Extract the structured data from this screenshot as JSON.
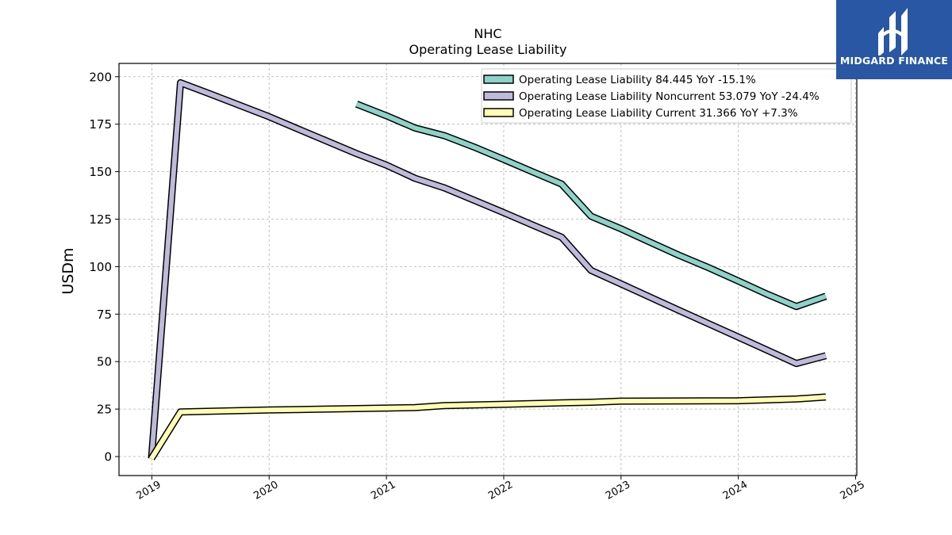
{
  "header": {
    "title_line1": "NHC",
    "title_line2": "Operating Lease Liability"
  },
  "logo": {
    "text": "MIDGARD FINANCE",
    "background": "#2957a4"
  },
  "chart_data": {
    "type": "line",
    "title": "NHC\nOperating Lease Liability",
    "ylabel": "USDm",
    "xlabel": "",
    "xlim": [
      2018.72,
      2025.01
    ],
    "ylim": [
      -10,
      207
    ],
    "x_ticks": [
      "2019",
      "2020",
      "2021",
      "2022",
      "2023",
      "2024",
      "2025"
    ],
    "y_ticks": [
      0,
      25,
      50,
      75,
      100,
      125,
      150,
      175,
      200
    ],
    "grid": true,
    "legend_position": "top-right",
    "series": [
      {
        "name": "Operating Lease Liability  84.445 YoY -15.1%",
        "color": "#8dd3c7",
        "points": [
          [
            "2020-09-30",
            185.6
          ],
          [
            "2020-12-31",
            179.5
          ],
          [
            "2021-03-31",
            173.0
          ],
          [
            "2021-06-30",
            169.0
          ],
          [
            "2021-09-30",
            163.0
          ],
          [
            "2021-12-31",
            156.5
          ],
          [
            "2022-03-31",
            150.0
          ],
          [
            "2022-06-30",
            143.5
          ],
          [
            "2022-09-30",
            126.5
          ],
          [
            "2022-12-31",
            120.0
          ],
          [
            "2023-03-31",
            113.0
          ],
          [
            "2023-06-30",
            106.0
          ],
          [
            "2023-09-30",
            99.5
          ],
          [
            "2023-12-31",
            92.5
          ],
          [
            "2024-03-31",
            85.5
          ],
          [
            "2024-06-30",
            79.0
          ],
          [
            "2024-09-30",
            84.445
          ]
        ]
      },
      {
        "name": "Operating Lease Liability Noncurrent  53.079 YoY -24.4%",
        "color": "#bebada",
        "points": [
          [
            "2018-12-31",
            -1.0
          ],
          [
            "2019-03-31",
            196.8
          ],
          [
            "2019-06-30",
            191.0
          ],
          [
            "2019-09-30",
            185.0
          ],
          [
            "2019-12-31",
            179.0
          ],
          [
            "2020-03-31",
            172.5
          ],
          [
            "2020-06-30",
            166.0
          ],
          [
            "2020-09-30",
            159.5
          ],
          [
            "2020-12-31",
            153.5
          ],
          [
            "2021-03-31",
            146.5
          ],
          [
            "2021-06-30",
            141.5
          ],
          [
            "2021-09-30",
            135.0
          ],
          [
            "2021-12-31",
            128.5
          ],
          [
            "2022-03-31",
            122.0
          ],
          [
            "2022-06-30",
            115.5
          ],
          [
            "2022-09-30",
            98.0
          ],
          [
            "2022-12-31",
            91.0
          ],
          [
            "2023-03-31",
            84.0
          ],
          [
            "2023-06-30",
            77.0
          ],
          [
            "2023-09-30",
            70.0
          ],
          [
            "2023-12-31",
            63.0
          ],
          [
            "2024-03-31",
            56.0
          ],
          [
            "2024-06-30",
            49.0
          ],
          [
            "2024-09-30",
            53.079
          ]
        ]
      },
      {
        "name": "Operating Lease Liability Current  31.366 YoY +7.3%",
        "color": "#ffffb3",
        "points": [
          [
            "2018-12-31",
            -1.0
          ],
          [
            "2019-03-31",
            23.5
          ],
          [
            "2019-12-31",
            24.5
          ],
          [
            "2020-12-31",
            25.5
          ],
          [
            "2021-03-31",
            25.8
          ],
          [
            "2021-06-30",
            26.8
          ],
          [
            "2021-12-31",
            27.5
          ],
          [
            "2022-06-30",
            28.3
          ],
          [
            "2022-09-30",
            28.6
          ],
          [
            "2022-12-31",
            29.2
          ],
          [
            "2023-12-31",
            29.4
          ],
          [
            "2024-06-30",
            30.3
          ],
          [
            "2024-09-30",
            31.366
          ]
        ]
      }
    ]
  }
}
